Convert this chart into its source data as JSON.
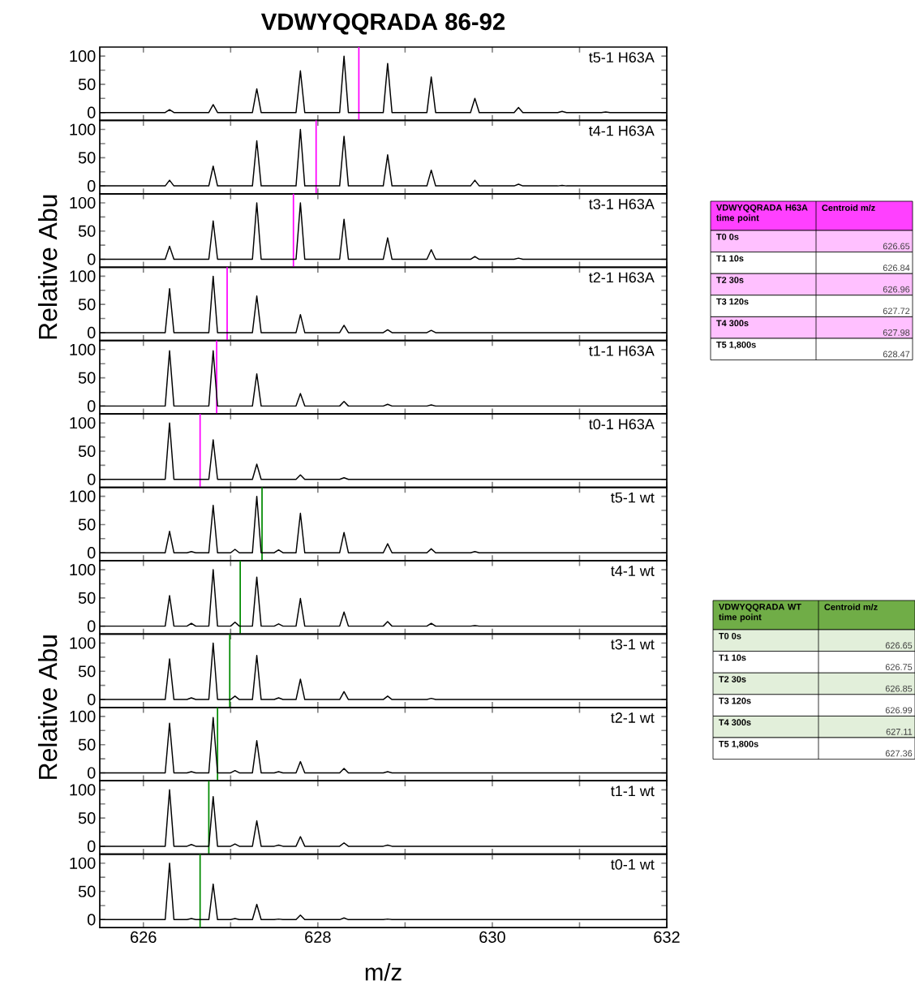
{
  "chart_data": [
    {
      "type": "line",
      "title": "VDWYQQRADA 86-92",
      "annotations": [
        "t5-1 H63A"
      ],
      "color": "#000000",
      "xlim": [
        625.5,
        632
      ],
      "ylim": [
        -14,
        116
      ],
      "xticks": [
        626,
        628,
        630,
        632
      ],
      "yticks": [
        0,
        50,
        100
      ],
      "tick_labels": "y",
      "ref_lines": [
        {
          "axis": "x",
          "value": 628.47,
          "color": "#ff00ff"
        }
      ],
      "x": [
        625.5,
        626.25,
        626.3,
        626.35,
        626.75,
        626.8,
        626.85,
        627.25,
        627.3,
        627.35,
        627.75,
        627.8,
        627.85,
        628.25,
        628.3,
        628.35,
        628.75,
        628.8,
        628.85,
        629.25,
        629.3,
        629.35,
        629.75,
        629.8,
        629.85,
        630.25,
        630.3,
        630.35,
        630.75,
        630.8,
        630.85,
        631.25,
        631.3,
        631.35,
        632
      ],
      "values": [
        0,
        0,
        5,
        0,
        0,
        14,
        0,
        0,
        42,
        0,
        0,
        74,
        0,
        0,
        100,
        0,
        0,
        87,
        0,
        0,
        63,
        0,
        0,
        25,
        0,
        0,
        9,
        0,
        0,
        2,
        0,
        0,
        1,
        0,
        0
      ]
    },
    {
      "type": "line",
      "annotations": [
        "t4-1 H63A"
      ],
      "color": "#000000",
      "xlim": [
        625.5,
        632
      ],
      "ylim": [
        -14,
        116
      ],
      "xticks": [
        626,
        628,
        630,
        632
      ],
      "yticks": [
        0,
        50,
        100
      ],
      "tick_labels": "y",
      "ref_lines": [
        {
          "axis": "x",
          "value": 627.98,
          "color": "#ff00ff"
        }
      ],
      "x": [
        625.5,
        626.25,
        626.3,
        626.35,
        626.75,
        626.8,
        626.85,
        627.25,
        627.3,
        627.35,
        627.75,
        627.8,
        627.85,
        628.25,
        628.3,
        628.35,
        628.75,
        628.8,
        628.85,
        629.25,
        629.3,
        629.35,
        629.75,
        629.8,
        629.85,
        630.25,
        630.3,
        630.35,
        630.75,
        630.8,
        630.85,
        631.25,
        631.3,
        631.35,
        632
      ],
      "values": [
        0,
        0,
        10,
        0,
        0,
        35,
        0,
        0,
        80,
        0,
        0,
        100,
        0,
        0,
        88,
        0,
        0,
        55,
        0,
        0,
        28,
        0,
        0,
        10,
        0,
        0,
        3,
        0,
        0,
        1,
        0,
        0,
        0,
        0,
        0
      ]
    },
    {
      "type": "line",
      "ylabel": "Relative Abu",
      "annotations": [
        "t3-1 H63A"
      ],
      "color": "#000000",
      "xlim": [
        625.5,
        632
      ],
      "ylim": [
        -14,
        116
      ],
      "xticks": [
        626,
        628,
        630,
        632
      ],
      "yticks": [
        0,
        50,
        100
      ],
      "tick_labels": "y",
      "ref_lines": [
        {
          "axis": "x",
          "value": 627.72,
          "color": "#ff00ff"
        }
      ],
      "x": [
        625.5,
        626.25,
        626.3,
        626.35,
        626.75,
        626.8,
        626.85,
        627.25,
        627.3,
        627.35,
        627.75,
        627.8,
        627.85,
        628.25,
        628.3,
        628.35,
        628.75,
        628.8,
        628.85,
        629.25,
        629.3,
        629.35,
        629.75,
        629.8,
        629.85,
        630.25,
        630.3,
        630.35,
        630.75,
        630.8,
        630.85,
        631.25,
        631.3,
        631.35,
        632
      ],
      "values": [
        0,
        0,
        23,
        0,
        0,
        68,
        0,
        0,
        100,
        0,
        0,
        100,
        0,
        0,
        71,
        0,
        0,
        38,
        0,
        0,
        17,
        0,
        0,
        5,
        0,
        0,
        2,
        0,
        0,
        0,
        0,
        0,
        0,
        0,
        0
      ]
    },
    {
      "type": "line",
      "annotations": [
        "t2-1 H63A"
      ],
      "color": "#000000",
      "xlim": [
        625.5,
        632
      ],
      "ylim": [
        -14,
        116
      ],
      "xticks": [
        626,
        628,
        630,
        632
      ],
      "yticks": [
        0,
        50,
        100
      ],
      "tick_labels": "y",
      "ref_lines": [
        {
          "axis": "x",
          "value": 626.96,
          "color": "#ff00ff"
        }
      ],
      "x": [
        625.5,
        626.25,
        626.3,
        626.35,
        626.75,
        626.8,
        626.85,
        627.25,
        627.3,
        627.35,
        627.75,
        627.8,
        627.85,
        628.25,
        628.3,
        628.35,
        628.75,
        628.8,
        628.85,
        629.25,
        629.3,
        629.35,
        629.75,
        629.8,
        629.85,
        630.25,
        630.3,
        630.35,
        630.75,
        630.8,
        630.85,
        631.25,
        631.3,
        631.35,
        632
      ],
      "values": [
        0,
        0,
        78,
        0,
        0,
        100,
        0,
        0,
        65,
        0,
        0,
        32,
        0,
        0,
        13,
        0,
        0,
        5,
        0,
        0,
        4,
        0,
        0,
        0,
        0,
        0,
        0,
        0,
        0,
        0,
        0,
        0,
        0,
        0,
        0
      ]
    },
    {
      "type": "line",
      "annotations": [
        "t1-1 H63A"
      ],
      "color": "#000000",
      "xlim": [
        625.5,
        632
      ],
      "ylim": [
        -14,
        116
      ],
      "xticks": [
        626,
        628,
        630,
        632
      ],
      "yticks": [
        0,
        50,
        100
      ],
      "tick_labels": "y",
      "ref_lines": [
        {
          "axis": "x",
          "value": 626.84,
          "color": "#ff00ff"
        }
      ],
      "x": [
        625.5,
        626.25,
        626.3,
        626.35,
        626.75,
        626.8,
        626.85,
        627.25,
        627.3,
        627.35,
        627.75,
        627.8,
        627.85,
        628.25,
        628.3,
        628.35,
        628.75,
        628.8,
        628.85,
        629.25,
        629.3,
        629.35,
        629.75,
        629.8,
        629.85,
        630.25,
        630.3,
        630.35,
        630.75,
        630.8,
        630.85,
        631.25,
        631.3,
        631.35,
        632
      ],
      "values": [
        0,
        0,
        98,
        0,
        0,
        98,
        0,
        0,
        57,
        0,
        0,
        22,
        0,
        0,
        8,
        0,
        0,
        3,
        0,
        0,
        2,
        0,
        0,
        0,
        0,
        0,
        0,
        0,
        0,
        0,
        0,
        0,
        0,
        0,
        0
      ]
    },
    {
      "type": "line",
      "annotations": [
        "t0-1 H63A"
      ],
      "color": "#000000",
      "xlim": [
        625.5,
        632
      ],
      "ylim": [
        -14,
        116
      ],
      "xticks": [
        626,
        628,
        630,
        632
      ],
      "yticks": [
        0,
        50,
        100
      ],
      "tick_labels": "y",
      "ref_lines": [
        {
          "axis": "x",
          "value": 626.65,
          "color": "#ff00ff"
        }
      ],
      "x": [
        625.5,
        626.25,
        626.3,
        626.35,
        626.75,
        626.8,
        626.85,
        627.25,
        627.3,
        627.35,
        627.75,
        627.8,
        627.85,
        628.25,
        628.3,
        628.35,
        628.75,
        628.8,
        628.85,
        629.25,
        629.3,
        629.35,
        629.75,
        629.8,
        629.85,
        630.25,
        630.3,
        630.35,
        630.75,
        630.8,
        630.85,
        631.25,
        631.3,
        631.35,
        632
      ],
      "values": [
        0,
        0,
        100,
        0,
        0,
        70,
        0,
        0,
        27,
        0,
        0,
        8,
        0,
        0,
        3,
        0,
        0,
        0,
        0,
        0,
        0,
        0,
        0,
        0,
        0,
        0,
        0,
        0,
        0,
        0,
        0,
        0,
        0,
        0,
        0
      ]
    },
    {
      "type": "line",
      "annotations": [
        "t5-1 wt"
      ],
      "color": "#000000",
      "xlim": [
        625.5,
        632
      ],
      "ylim": [
        -14,
        116
      ],
      "xticks": [
        626,
        628,
        630,
        632
      ],
      "yticks": [
        0,
        50,
        100
      ],
      "tick_labels": "y",
      "ref_lines": [
        {
          "axis": "x",
          "value": 627.36,
          "color": "#008a00"
        }
      ],
      "x": [
        625.5,
        626.25,
        626.3,
        626.35,
        626.5,
        626.55,
        626.6,
        626.75,
        626.8,
        626.85,
        627.0,
        627.05,
        627.1,
        627.25,
        627.3,
        627.35,
        627.5,
        627.55,
        627.6,
        627.75,
        627.8,
        627.85,
        628.25,
        628.3,
        628.35,
        628.75,
        628.8,
        628.85,
        629.25,
        629.3,
        629.35,
        629.75,
        629.8,
        629.85,
        630.25,
        630.3,
        630.35,
        632
      ],
      "values": [
        0,
        0,
        38,
        0,
        0,
        2,
        0,
        0,
        84,
        0,
        0,
        6,
        0,
        0,
        100,
        0,
        0,
        5,
        0,
        0,
        70,
        0,
        0,
        36,
        0,
        0,
        16,
        0,
        0,
        7,
        0,
        0,
        2,
        0,
        0,
        0,
        0,
        0
      ]
    },
    {
      "type": "line",
      "annotations": [
        "t4-1 wt"
      ],
      "color": "#000000",
      "xlim": [
        625.5,
        632
      ],
      "ylim": [
        -14,
        116
      ],
      "xticks": [
        626,
        628,
        630,
        632
      ],
      "yticks": [
        0,
        50,
        100
      ],
      "tick_labels": "y",
      "ref_lines": [
        {
          "axis": "x",
          "value": 627.11,
          "color": "#008a00"
        }
      ],
      "x": [
        625.5,
        626.25,
        626.3,
        626.35,
        626.5,
        626.55,
        626.6,
        626.75,
        626.8,
        626.85,
        627.0,
        627.05,
        627.1,
        627.25,
        627.3,
        627.35,
        627.5,
        627.55,
        627.6,
        627.75,
        627.8,
        627.85,
        628.25,
        628.3,
        628.35,
        628.75,
        628.8,
        628.85,
        629.25,
        629.3,
        629.35,
        629.75,
        629.8,
        629.85,
        630.25,
        630.3,
        630.35,
        632
      ],
      "values": [
        0,
        0,
        54,
        0,
        0,
        5,
        0,
        0,
        100,
        0,
        0,
        7,
        0,
        0,
        87,
        0,
        0,
        4,
        0,
        0,
        49,
        0,
        0,
        25,
        0,
        0,
        8,
        0,
        0,
        5,
        0,
        0,
        1,
        0,
        0,
        0,
        0,
        0
      ]
    },
    {
      "type": "line",
      "ylabel": "Relative Abu",
      "annotations": [
        "t3-1 wt"
      ],
      "color": "#000000",
      "xlim": [
        625.5,
        632
      ],
      "ylim": [
        -14,
        116
      ],
      "xticks": [
        626,
        628,
        630,
        632
      ],
      "yticks": [
        0,
        50,
        100
      ],
      "tick_labels": "y",
      "ref_lines": [
        {
          "axis": "x",
          "value": 626.99,
          "color": "#008a00"
        }
      ],
      "x": [
        625.5,
        626.25,
        626.3,
        626.35,
        626.5,
        626.55,
        626.6,
        626.75,
        626.8,
        626.85,
        627.0,
        627.05,
        627.1,
        627.25,
        627.3,
        627.35,
        627.5,
        627.55,
        627.6,
        627.75,
        627.8,
        627.85,
        628.25,
        628.3,
        628.35,
        628.75,
        628.8,
        628.85,
        629.25,
        629.3,
        629.35,
        629.75,
        629.8,
        629.85,
        630.25,
        630.3,
        630.35,
        632
      ],
      "values": [
        0,
        0,
        72,
        0,
        0,
        3,
        0,
        0,
        100,
        0,
        0,
        6,
        0,
        0,
        78,
        0,
        0,
        3,
        0,
        0,
        36,
        0,
        0,
        14,
        0,
        0,
        6,
        0,
        0,
        2,
        0,
        0,
        0,
        0,
        0,
        0,
        0,
        0
      ]
    },
    {
      "type": "line",
      "annotations": [
        "t2-1 wt"
      ],
      "color": "#000000",
      "xlim": [
        625.5,
        632
      ],
      "ylim": [
        -14,
        116
      ],
      "xticks": [
        626,
        628,
        630,
        632
      ],
      "yticks": [
        0,
        50,
        100
      ],
      "tick_labels": "y",
      "ref_lines": [
        {
          "axis": "x",
          "value": 626.85,
          "color": "#008a00"
        }
      ],
      "x": [
        625.5,
        626.25,
        626.3,
        626.35,
        626.5,
        626.55,
        626.6,
        626.75,
        626.8,
        626.85,
        627.0,
        627.05,
        627.1,
        627.25,
        627.3,
        627.35,
        627.5,
        627.55,
        627.6,
        627.75,
        627.8,
        627.85,
        628.25,
        628.3,
        628.35,
        628.75,
        628.8,
        628.85,
        629.25,
        629.3,
        629.35,
        629.75,
        629.8,
        629.85,
        630.25,
        630.3,
        630.35,
        632
      ],
      "values": [
        0,
        0,
        88,
        0,
        0,
        2,
        0,
        0,
        98,
        0,
        0,
        4,
        0,
        0,
        57,
        0,
        0,
        2,
        0,
        0,
        20,
        0,
        0,
        8,
        0,
        0,
        2,
        0,
        0,
        0,
        0,
        0,
        0,
        0,
        0,
        0,
        0,
        0
      ]
    },
    {
      "type": "line",
      "annotations": [
        "t1-1 wt"
      ],
      "color": "#000000",
      "xlim": [
        625.5,
        632
      ],
      "ylim": [
        -14,
        116
      ],
      "xticks": [
        626,
        628,
        630,
        632
      ],
      "yticks": [
        0,
        50,
        100
      ],
      "tick_labels": "y",
      "ref_lines": [
        {
          "axis": "x",
          "value": 626.75,
          "color": "#008a00"
        }
      ],
      "x": [
        625.5,
        626.25,
        626.3,
        626.35,
        626.5,
        626.55,
        626.6,
        626.75,
        626.8,
        626.85,
        627.0,
        627.05,
        627.1,
        627.25,
        627.3,
        627.35,
        627.5,
        627.55,
        627.6,
        627.75,
        627.8,
        627.85,
        628.25,
        628.3,
        628.35,
        628.75,
        628.8,
        628.85,
        629.25,
        629.3,
        629.35,
        629.75,
        629.8,
        629.85,
        630.25,
        630.3,
        630.35,
        632
      ],
      "values": [
        0,
        0,
        100,
        0,
        0,
        3,
        0,
        0,
        88,
        0,
        0,
        4,
        0,
        0,
        45,
        0,
        0,
        2,
        0,
        0,
        17,
        0,
        0,
        6,
        0,
        0,
        2,
        0,
        0,
        0,
        0,
        0,
        0,
        0,
        0,
        0,
        0,
        0
      ]
    },
    {
      "type": "line",
      "xlabel": "m/z",
      "annotations": [
        "t0-1 wt"
      ],
      "color": "#000000",
      "xlim": [
        625.5,
        632
      ],
      "ylim": [
        -14,
        116
      ],
      "xticks": [
        626,
        628,
        630,
        632
      ],
      "yticks": [
        0,
        50,
        100
      ],
      "ref_lines": [
        {
          "axis": "x",
          "value": 626.65,
          "color": "#008a00"
        }
      ],
      "x": [
        625.5,
        626.25,
        626.3,
        626.35,
        626.5,
        626.55,
        626.6,
        626.75,
        626.8,
        626.85,
        627.0,
        627.05,
        627.1,
        627.25,
        627.3,
        627.35,
        627.5,
        627.55,
        627.6,
        627.75,
        627.8,
        627.85,
        628.25,
        628.3,
        628.35,
        628.75,
        628.8,
        628.85,
        629.25,
        629.3,
        629.35,
        629.75,
        629.8,
        629.85,
        630.25,
        630.3,
        630.35,
        632
      ],
      "values": [
        0,
        0,
        100,
        0,
        0,
        2,
        0,
        0,
        63,
        0,
        0,
        2,
        0,
        0,
        27,
        0,
        0,
        1,
        0,
        0,
        8,
        0,
        0,
        3,
        0,
        0,
        1,
        0,
        0,
        0,
        0,
        0,
        0,
        0,
        0,
        0,
        0,
        0
      ]
    },
    {
      "type": "other",
      "title": "VDWYQQRADA H63A time point",
      "xlabel": "Centroid m/z",
      "color": "#ff40ff",
      "colors": [
        "#ffc0ff",
        "#ffffff",
        "#ffc0ff",
        "#ffffff",
        "#ffc0ff",
        "#ffffff"
      ],
      "data_labels": true,
      "categories": [
        "T0 0s",
        "T1 10s",
        "T2 30s",
        "T3 120s",
        "T4 300s",
        "T5 1,800s"
      ],
      "values": [
        626.65,
        626.84,
        626.96,
        627.72,
        627.98,
        628.47
      ]
    },
    {
      "type": "other",
      "title": "VDWYQQRADA WT time point",
      "xlabel": "Centroid m/z",
      "color": "#70ad47",
      "colors": [
        "#e2efda",
        "#ffffff",
        "#e2efda",
        "#ffffff",
        "#e2efda",
        "#ffffff"
      ],
      "data_labels": true,
      "categories": [
        "T0 0s",
        "T1 10s",
        "T2 30s",
        "T3 120s",
        "T4 300s",
        "T5 1,800s"
      ],
      "values": [
        626.65,
        626.75,
        626.85,
        626.99,
        627.11,
        627.36
      ]
    }
  ]
}
